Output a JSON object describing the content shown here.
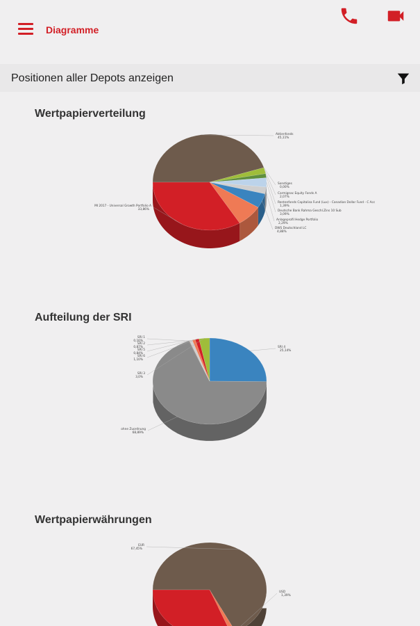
{
  "appbar": {
    "title": "Diagramme",
    "menu_icon": "hamburger-menu-icon",
    "phone_icon": "phone-icon",
    "video_icon": "video-camera-icon"
  },
  "filterbar": {
    "label": "Positionen aller Depots anzeigen",
    "filter_icon": "filter-icon"
  },
  "colors": {
    "accent": "#d21f26"
  },
  "sections": [
    {
      "title": "Wertpapierverteilung"
    },
    {
      "title": "Aufteilung der SRI"
    },
    {
      "title": "Wertpapierwährungen"
    }
  ],
  "chart_data": [
    {
      "type": "pie",
      "title": "Wertpapierverteilung",
      "slices": [
        {
          "label": "Aktienfonds",
          "value": 45.11,
          "display": "45,11%",
          "color": "#6e5b4c"
        },
        {
          "label": "Sonstiges",
          "value": 0.0,
          "display": "0,00%",
          "color": "#8a8a8a"
        },
        {
          "label": "Carmignac Equity Fonds A",
          "value": 2.07,
          "display": "2,07%",
          "color": "#9fbd3a"
        },
        {
          "label": "Rentenfonds Capitalisa Fund (Lux) - Canadian Dollar Fund - C Acc",
          "value": 1.39,
          "display": "1,39%",
          "color": "#5f8f3c"
        },
        {
          "label": "Deutsche Bank Rahma Geschl.Zins 10 Sub",
          "value": 3.09,
          "display": "3,09%",
          "color": "#bcd3ea"
        },
        {
          "label": "Anlageprofil Hedge Portfolio",
          "value": 2.29,
          "display": "2,29%",
          "color": "#cfcfcf"
        },
        {
          "label": "DWS Deutschland LC",
          "value": 4.88,
          "display": "4,88%",
          "color": "#3a84bf"
        },
        {
          "label": "",
          "value": 7.4,
          "display": "",
          "color": "#ef7a55"
        },
        {
          "label": "MI 2017 - Universal Growth Portfolio A",
          "value": 33.86,
          "display": "33,86%",
          "color": "#d21f26"
        }
      ]
    },
    {
      "type": "pie",
      "title": "Aufteilung der SRI",
      "slices": [
        {
          "label": "SRI 4",
          "value": 25.14,
          "display": "25,14%",
          "color": "#3a84bf"
        },
        {
          "label": "ohne Zuordnung",
          "value": 68.89,
          "display": "68,89%",
          "color": "#8a8a8a"
        },
        {
          "label": "SRI 1",
          "value": 0.16,
          "display": "0,16%",
          "color": "#6e5b4c"
        },
        {
          "label": "SRI 2",
          "value": 0.87,
          "display": "0,87%",
          "color": "#cfcfcf"
        },
        {
          "label": "SRI 5",
          "value": 0.84,
          "display": "0,84%",
          "color": "#ef7a55"
        },
        {
          "label": "SRI 6",
          "value": 1.1,
          "display": "1,10%",
          "color": "#d21f26"
        },
        {
          "label": "SRI 3",
          "value": 3.0,
          "display": "3,0%",
          "color": "#9fbd3a"
        }
      ]
    },
    {
      "type": "pie",
      "title": "Wertpapierwährungen",
      "slices": [
        {
          "label": "EUR",
          "value": 67.45,
          "display": "67,45%",
          "color": "#6e5b4c"
        },
        {
          "label": "USD",
          "value": 1.39,
          "display": "1,39%",
          "color": "#ef7a55"
        },
        {
          "label": "",
          "value": 31.16,
          "display": "",
          "color": "#d21f26"
        }
      ]
    }
  ]
}
